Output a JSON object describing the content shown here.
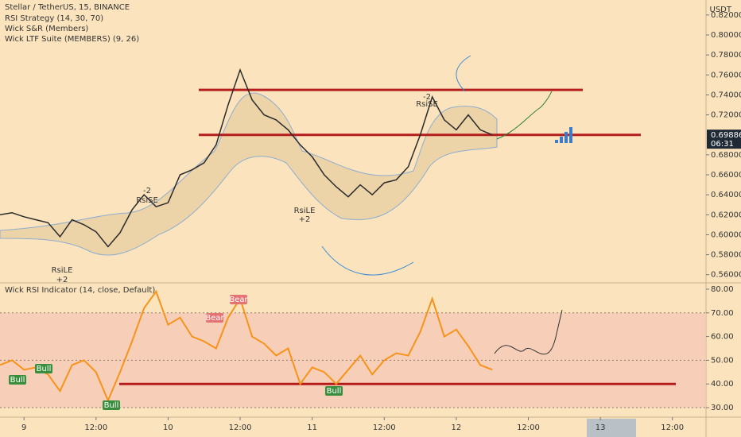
{
  "chart_data": [
    {
      "type": "line",
      "title": "Stellar / TetherUS, 15, BINANCE",
      "indicators": [
        "RSI Strategy (14, 30, 70)",
        "Wick S&R (Members)",
        "Wick LTF Suite (MEMBERS) (9, 26)"
      ],
      "currency": "USDT",
      "x": [
        -4,
        -2,
        0,
        2,
        4,
        6,
        8,
        10,
        12,
        14,
        16,
        18,
        20,
        22,
        24,
        26,
        28,
        30,
        32,
        34,
        36,
        38,
        40,
        42,
        44,
        46,
        48,
        50,
        52,
        54,
        56,
        58,
        60,
        62,
        64,
        66,
        68,
        70,
        72,
        74,
        76,
        78
      ],
      "values": [
        0.62,
        0.622,
        0.618,
        0.615,
        0.612,
        0.598,
        0.615,
        0.61,
        0.603,
        0.588,
        0.602,
        0.625,
        0.64,
        0.628,
        0.632,
        0.66,
        0.665,
        0.672,
        0.69,
        0.73,
        0.765,
        0.735,
        0.72,
        0.715,
        0.705,
        0.69,
        0.678,
        0.66,
        0.648,
        0.638,
        0.65,
        0.64,
        0.652,
        0.655,
        0.668,
        0.7,
        0.738,
        0.715,
        0.705,
        0.72,
        0.705,
        0.7
      ],
      "color": "#2b2b2b",
      "xlim": [
        -4,
        113.6
      ],
      "ylim": [
        0.555,
        0.835
      ],
      "yticks": [
        {
          "value": 0.56,
          "label": "0.56000"
        },
        {
          "value": 0.58,
          "label": "0.58000"
        },
        {
          "value": 0.6,
          "label": "0.60000"
        },
        {
          "value": 0.62,
          "label": "0.62000"
        },
        {
          "value": 0.64,
          "label": "0.64000"
        },
        {
          "value": 0.66,
          "label": "0.66000"
        },
        {
          "value": 0.68,
          "label": "0.68000"
        },
        {
          "value": 0.72,
          "label": "0.72000"
        },
        {
          "value": 0.74,
          "label": "0.74000"
        },
        {
          "value": 0.76,
          "label": "0.76000"
        },
        {
          "value": 0.78,
          "label": "0.78000"
        },
        {
          "value": 0.8,
          "label": "0.80000"
        },
        {
          "value": 0.82,
          "label": "0.82000"
        }
      ],
      "levels": [
        0.745,
        0.7
      ],
      "level_color": "#b71c1c",
      "last_price": 0.69886,
      "countdown": "06:31",
      "annotations": [
        "RsiLE",
        "+2",
        "-2",
        "RsiSE",
        "RsiLE",
        "+2",
        "-2",
        "RsiSE"
      ]
    },
    {
      "type": "line",
      "title": "Wick RSI Indicator (14, close, Default)",
      "x": [
        -4,
        -2,
        0,
        2,
        4,
        6,
        8,
        10,
        12,
        14,
        16,
        18,
        20,
        22,
        24,
        26,
        28,
        30,
        32,
        34,
        36,
        38,
        40,
        42,
        44,
        46,
        48,
        50,
        52,
        54,
        56,
        58,
        60,
        62,
        64,
        66,
        68,
        70,
        72,
        74,
        76,
        78
      ],
      "values": [
        48,
        50,
        46,
        47,
        44,
        37,
        48,
        50,
        45,
        33,
        45,
        58,
        72,
        79,
        65,
        68,
        60,
        58,
        55,
        68,
        76,
        60,
        57,
        52,
        55,
        40,
        47,
        45,
        40,
        46,
        52,
        44,
        50,
        53,
        52,
        62,
        76,
        60,
        63,
        56,
        48,
        46
      ],
      "color": "#f7931a",
      "xlim": [
        -4,
        113.6
      ],
      "ylim": [
        27,
        82
      ],
      "yticks": [
        {
          "value": 30,
          "label": "30.00"
        },
        {
          "value": 40,
          "label": "40.00"
        },
        {
          "value": 50,
          "label": "50.00"
        },
        {
          "value": 60,
          "label": "60.00"
        },
        {
          "value": 70,
          "label": "70.00"
        },
        {
          "value": 80,
          "label": "80.00"
        }
      ],
      "band": [
        30,
        70
      ],
      "band_color": "#f6c9b6",
      "levels": [
        40
      ],
      "level_color": "#b71c1c",
      "xticks": [
        {
          "value": 0,
          "label": "9"
        },
        {
          "value": 12,
          "label": "12:00"
        },
        {
          "value": 24,
          "label": "10"
        },
        {
          "value": 36,
          "label": "12:00"
        },
        {
          "value": 48,
          "label": "11"
        },
        {
          "value": 60,
          "label": "12:00"
        },
        {
          "value": 72,
          "label": "12"
        },
        {
          "value": 84,
          "label": "12:00"
        },
        {
          "value": 96,
          "label": "13"
        },
        {
          "value": 108,
          "label": "12:00"
        }
      ],
      "annotations": [
        "Bull",
        "Bull",
        "Bull",
        "Bear",
        "Bear",
        "Bull"
      ]
    }
  ]
}
